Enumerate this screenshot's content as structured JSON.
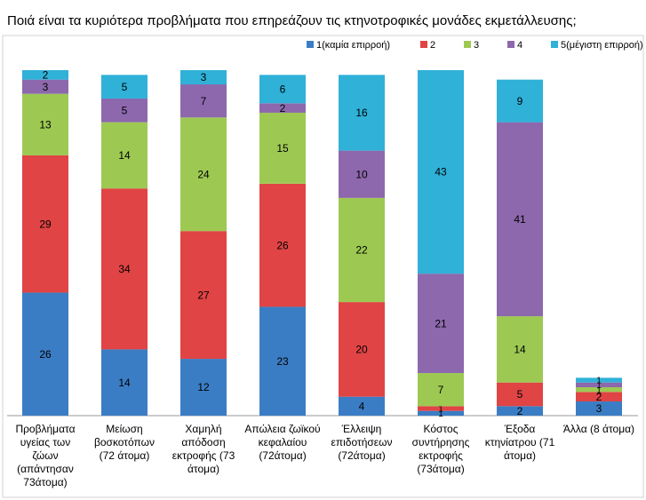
{
  "chart_data": {
    "type": "stacked_bar",
    "title": "Ποιά είναι τα κυριότερα προβλήματα που επηρεάζουν τις κτηνοτροφικές μονάδες εκμετάλλευσης;",
    "categories": [
      "Προβλήματα υγείας των ζώων (απάντησαν 73άτομα)",
      "Μείωση βοσκοτόπων (72 άτομα)",
      "Χαμηλή απόδοση εκτροφής (73 άτομα)",
      "Απώλεια ζωϊκού κεφαλαίου (72άτομα)",
      "Έλλειψη επιδοτήσεων (72άτομα)",
      "Κόστος συντήρησης εκτροφής (73άτομα)",
      "Έξοδα κτηνίατρου (71 άτομα)",
      "Άλλα (8 άτομα)"
    ],
    "series": [
      {
        "name": "1(καμία επιρροή)",
        "color": "#3b7dc4",
        "values": [
          26,
          14,
          12,
          23,
          4,
          1,
          2,
          3
        ]
      },
      {
        "name": "2",
        "color": "#e04444",
        "values": [
          29,
          34,
          27,
          26,
          20,
          1,
          5,
          2
        ]
      },
      {
        "name": "3",
        "color": "#9dc953",
        "values": [
          13,
          14,
          24,
          15,
          22,
          7,
          14,
          1
        ]
      },
      {
        "name": "4",
        "color": "#8d68ad",
        "values": [
          3,
          5,
          7,
          2,
          10,
          21,
          41,
          1
        ]
      },
      {
        "name": "5(μέγιστη επιρροή)",
        "color": "#2fb1d8",
        "values": [
          2,
          5,
          3,
          6,
          16,
          43,
          9,
          1
        ]
      }
    ],
    "legend": "top-right"
  }
}
